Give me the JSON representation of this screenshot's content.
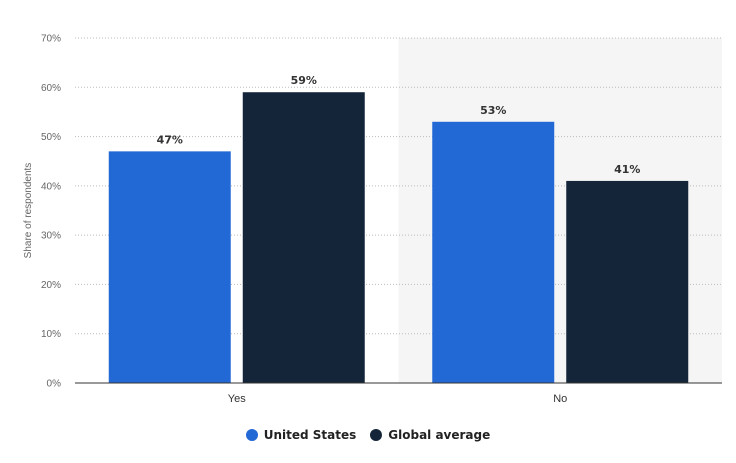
{
  "chart_data": {
    "type": "bar",
    "categories": [
      "Yes",
      "No"
    ],
    "series": [
      {
        "name": "United States",
        "values": [
          47,
          53
        ],
        "color": "#2369d6"
      },
      {
        "name": "Global average",
        "values": [
          59,
          41
        ],
        "color": "#14253a"
      }
    ],
    "ylabel": "Share of respondents",
    "ylim": [
      0,
      70
    ],
    "yticks": [
      "0%",
      "10%",
      "20%",
      "30%",
      "40%",
      "50%",
      "60%",
      "70%"
    ],
    "value_suffix": "%",
    "grid": true,
    "highlighted_category": "No",
    "legend_position": "bottom"
  }
}
